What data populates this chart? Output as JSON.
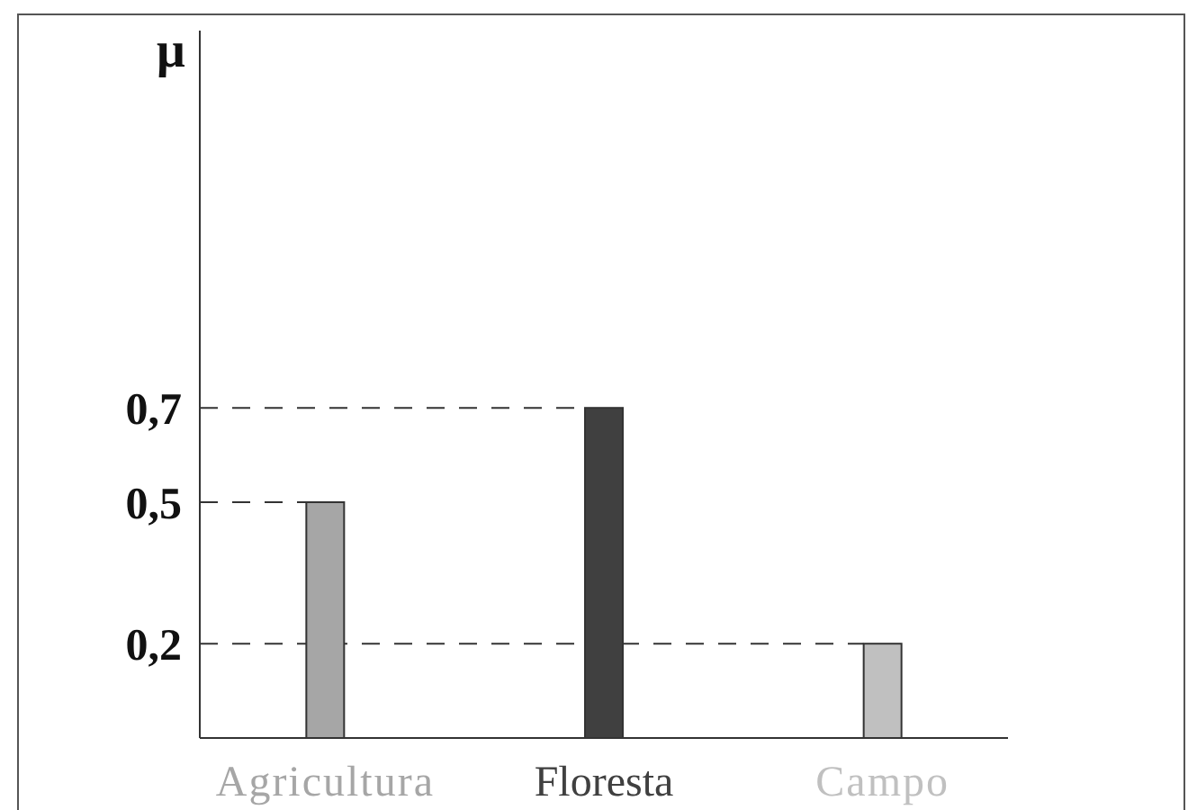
{
  "chart_data": {
    "type": "bar",
    "ylabel": "µ",
    "categories": [
      "Agricultura",
      "Floresta",
      "Campo"
    ],
    "values": [
      0.5,
      0.7,
      0.2
    ],
    "colors": [
      "#a6a6a6",
      "#404040",
      "#c0c0c0"
    ],
    "ylim": [
      0,
      1.5
    ],
    "yticks": [
      {
        "value": 0.2,
        "label": "0,2"
      },
      {
        "value": 0.5,
        "label": "0,5"
      },
      {
        "value": 0.7,
        "label": "0,7"
      }
    ],
    "ref_lines": [
      {
        "axis": "y",
        "value": 0.7,
        "line_style": "dashed",
        "color": "#333333"
      },
      {
        "axis": "y",
        "value": 0.5,
        "line_style": "dashed",
        "color": "#333333"
      },
      {
        "axis": "y",
        "value": 0.2,
        "line_style": "dashed",
        "color": "#333333"
      }
    ]
  }
}
